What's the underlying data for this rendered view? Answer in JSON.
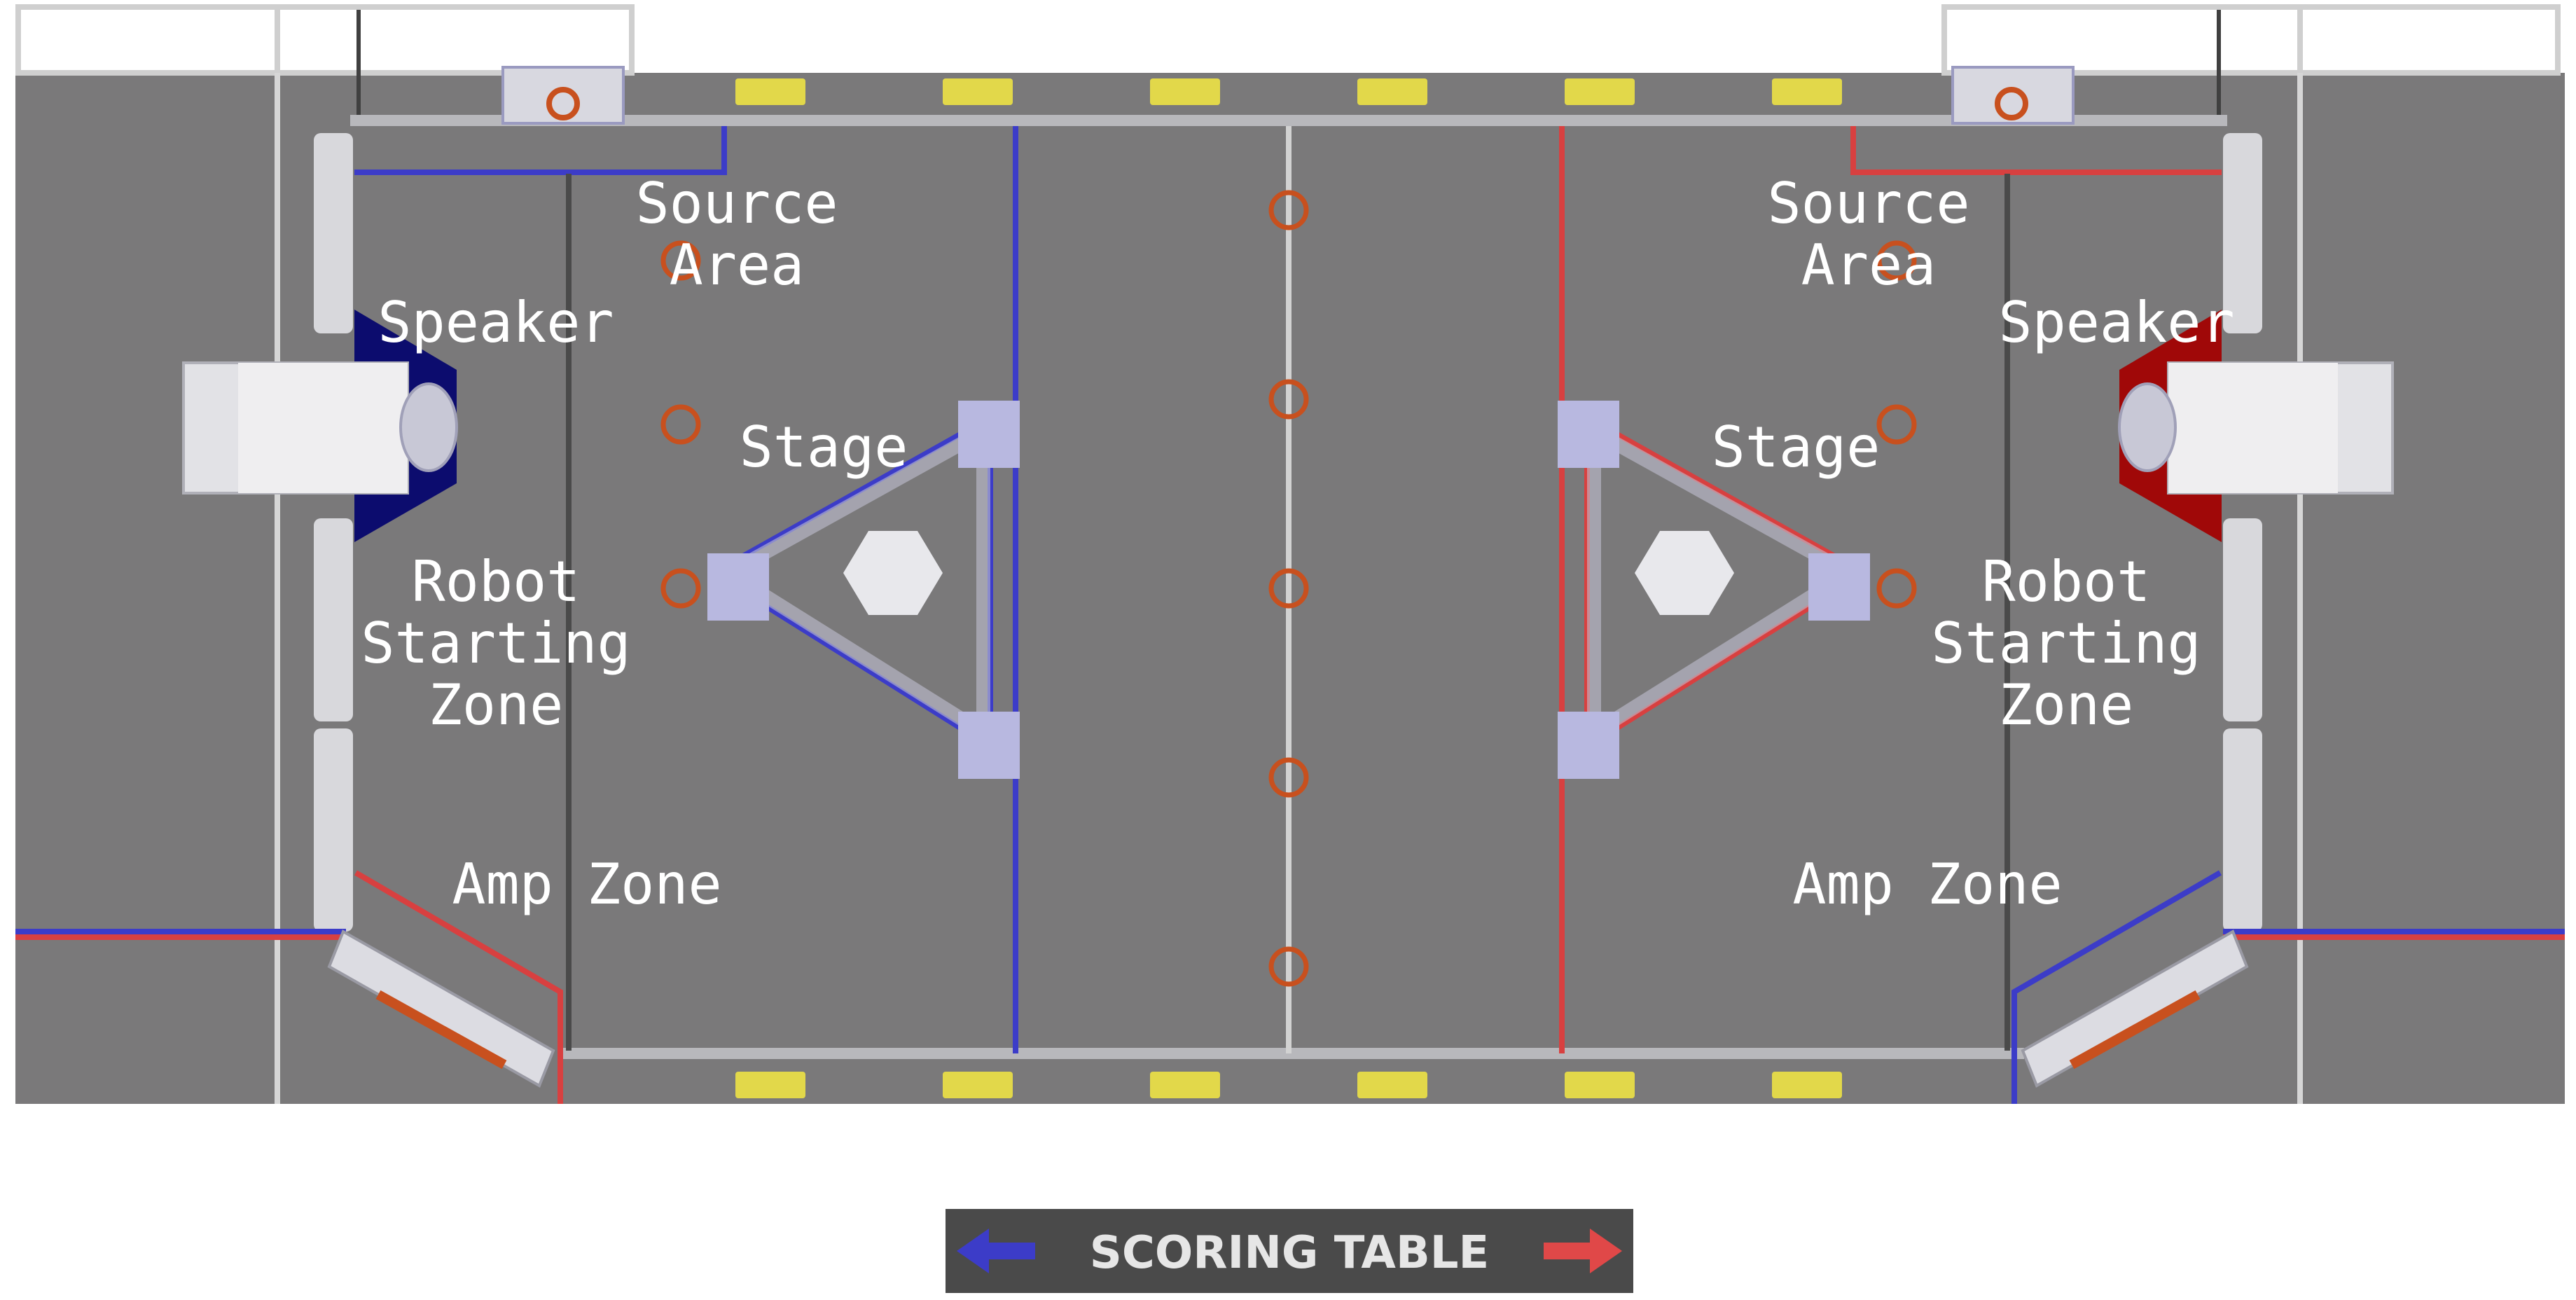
{
  "title": "",
  "labels": {
    "blue_source_line1": "Source",
    "blue_source_line2": "Area",
    "red_source_line1": "Source",
    "red_source_line2": "Area",
    "blue_speaker": "Speaker",
    "red_speaker": "Speaker",
    "blue_stage": "Stage",
    "red_stage": "Stage",
    "blue_start_line1": "Robot",
    "blue_start_line2": "Starting",
    "blue_start_line3": "Zone",
    "red_start_line1": "Robot",
    "red_start_line2": "Starting",
    "red_start_line3": "Zone",
    "blue_amp": "Amp Zone",
    "red_amp": "Amp Zone"
  },
  "scoring_table": {
    "label": "SCORING TABLE",
    "left_arrow_color": "#3c3cc8",
    "right_arrow_color": "#e04848"
  },
  "colors": {
    "carpet": "#7a797a",
    "blue_alliance": "#3c3cc8",
    "red_alliance": "#d84040",
    "speaker_blue": "#0c0c6e",
    "speaker_red": "#a00808",
    "note_ring": "#c8501e",
    "bumper_yellow": "#e2d84a"
  }
}
